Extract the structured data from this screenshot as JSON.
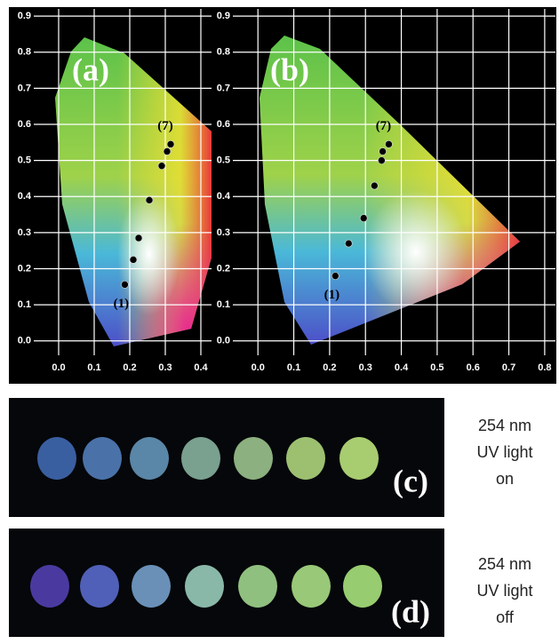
{
  "chart_data": [
    {
      "type": "scatter",
      "title": "(a)",
      "color": "#000000",
      "grid": true,
      "x": [
        0.186,
        0.21,
        0.225,
        0.255,
        0.29,
        0.305,
        0.315
      ],
      "values": [
        0.156,
        0.225,
        0.285,
        0.39,
        0.485,
        0.525,
        0.545
      ],
      "annotations": [
        "(1)",
        "(7)"
      ],
      "xlim": [
        -0.07,
        0.43
      ],
      "ylim": [
        -0.04,
        0.92
      ],
      "xticks": [
        {
          "value": 0,
          "label": "0.0"
        },
        0.1,
        0.2,
        0.3,
        0.4
      ],
      "yticks": [
        {
          "value": 0,
          "label": "0.0"
        },
        0.1,
        0.2,
        0.3,
        0.4,
        0.5,
        0.6,
        0.7,
        0.8,
        0.9
      ]
    },
    {
      "type": "scatter",
      "title": "(b)",
      "color": "#000000",
      "grid": true,
      "x": [
        0.216,
        0.253,
        0.295,
        0.325,
        0.345,
        0.348,
        0.365
      ],
      "values": [
        0.18,
        0.27,
        0.34,
        0.43,
        0.5,
        0.525,
        0.545
      ],
      "annotations": [
        "(1)",
        "(7)"
      ],
      "xlim": [
        -0.07,
        0.83
      ],
      "ylim": [
        -0.04,
        0.92
      ],
      "xticks": [
        {
          "value": 0,
          "label": "0.0"
        },
        0.1,
        0.2,
        0.3,
        0.4,
        0.5,
        0.6,
        0.7,
        0.8
      ],
      "yticks": [
        {
          "value": 0,
          "label": "0.0"
        },
        0.1,
        0.2,
        0.3,
        0.4,
        0.5,
        0.6,
        0.7,
        0.8,
        0.9
      ]
    }
  ],
  "panels": [
    {
      "label": "(c)",
      "caption": [
        "254 nm",
        "UV light",
        "on"
      ]
    },
    {
      "label": "(d)",
      "caption": [
        "254 nm",
        "UV light",
        "off"
      ]
    }
  ]
}
